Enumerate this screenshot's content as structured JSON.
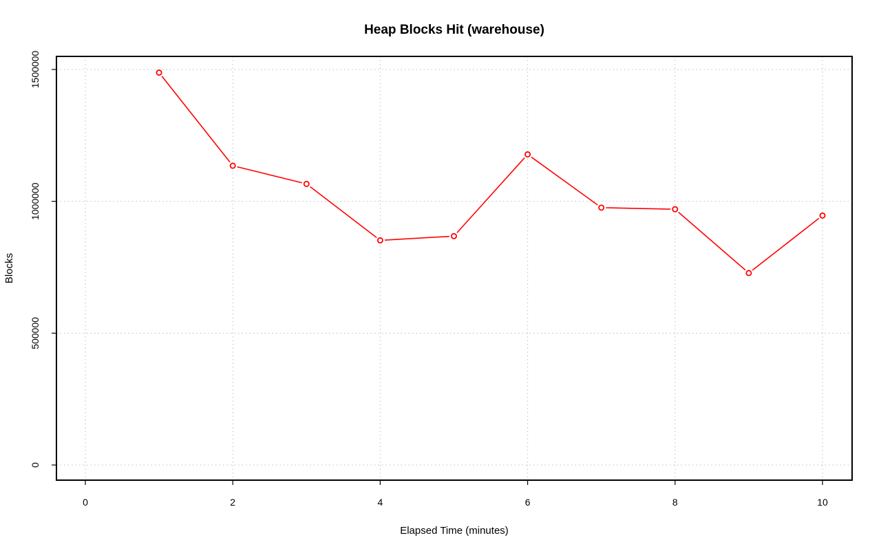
{
  "chart_data": {
    "type": "line",
    "title": "Heap Blocks Hit (warehouse)",
    "xlabel": "Elapsed Time (minutes)",
    "ylabel": "Blocks",
    "xlim": [
      0,
      10
    ],
    "ylim": [
      0,
      1500000
    ],
    "xticks": [
      "0",
      "2",
      "4",
      "6",
      "8",
      "10"
    ],
    "yticks": [
      "0",
      "500000",
      "1000000",
      "1500000"
    ],
    "grid": true,
    "series": [
      {
        "color": "#ff0000",
        "x": [
          1,
          2,
          3,
          4,
          5,
          6,
          7,
          8,
          9,
          10
        ],
        "y": [
          1488000,
          1135000,
          1066000,
          852000,
          868000,
          1178000,
          976000,
          970000,
          728000,
          946000
        ]
      }
    ]
  }
}
